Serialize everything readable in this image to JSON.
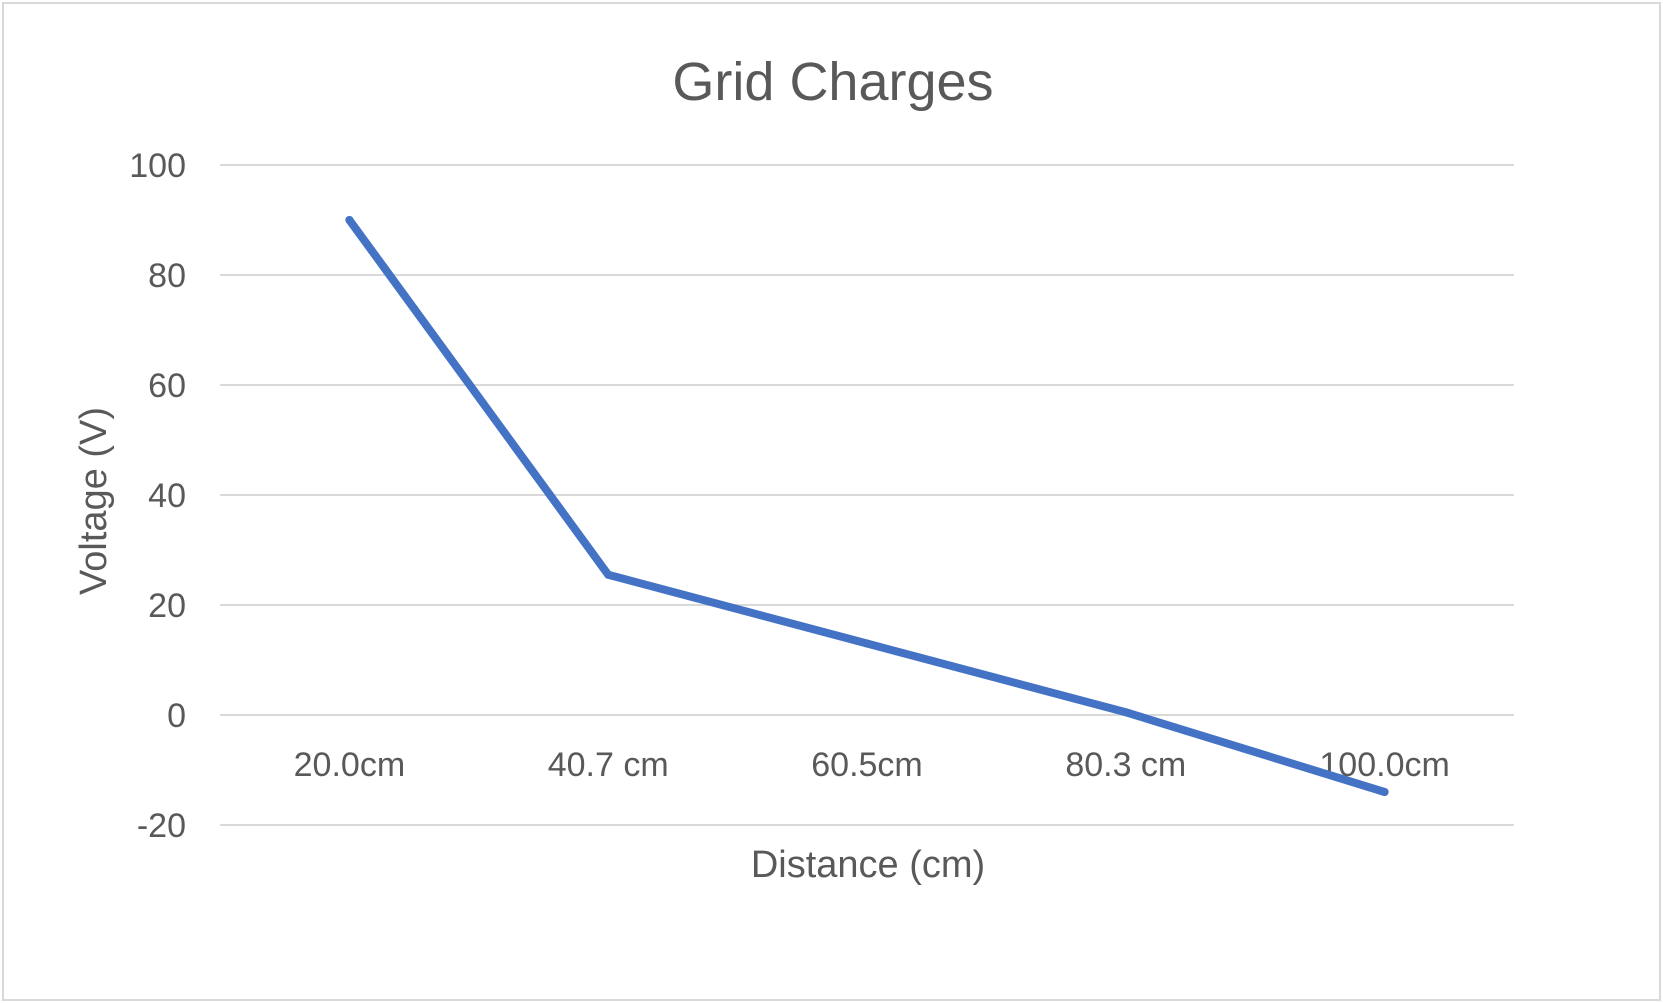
{
  "chart_data": {
    "type": "line",
    "title": "Grid Charges",
    "xlabel": "Distance (cm)",
    "ylabel": "Voltage (V)",
    "categories": [
      "20.0cm",
      "40.7 cm",
      "60.5cm",
      "80.3 cm",
      "100.0cm"
    ],
    "series": [
      {
        "values": [
          90,
          25.5,
          13,
          0.5,
          -14
        ],
        "color": "#4472c4"
      }
    ],
    "ylim": [
      -20,
      100
    ],
    "yticks": [
      "100",
      "80",
      "60",
      "40",
      "20",
      "0",
      "-20"
    ],
    "grid": true,
    "legend": "none"
  }
}
